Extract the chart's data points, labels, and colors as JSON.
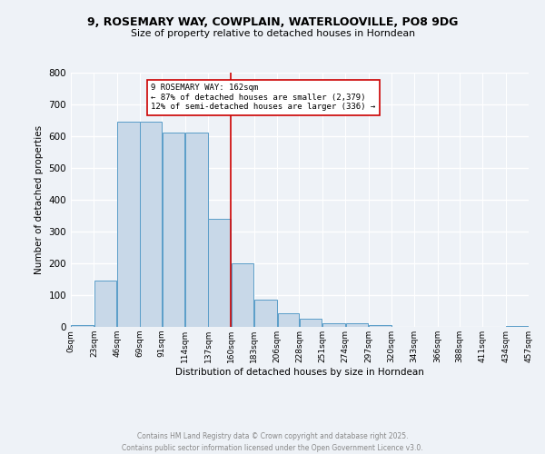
{
  "title_line1": "9, ROSEMARY WAY, COWPLAIN, WATERLOOVILLE, PO8 9DG",
  "title_line2": "Size of property relative to detached houses in Horndean",
  "xlabel": "Distribution of detached houses by size in Horndean",
  "ylabel": "Number of detached properties",
  "bar_color": "#c8d8e8",
  "bar_edge_color": "#5a9dc8",
  "background_color": "#eef2f7",
  "grid_color": "#ffffff",
  "vline_x": 160,
  "vline_color": "#cc0000",
  "annotation_text": "9 ROSEMARY WAY: 162sqm\n← 87% of detached houses are smaller (2,379)\n12% of semi-detached houses are larger (336) →",
  "annotation_box_color": "#ffffff",
  "annotation_box_edge": "#cc0000",
  "bins": [
    0,
    23,
    46,
    69,
    91,
    114,
    137,
    160,
    183,
    206,
    228,
    251,
    274,
    297,
    320,
    343,
    366,
    388,
    411,
    434,
    457
  ],
  "bin_labels": [
    "0sqm",
    "23sqm",
    "46sqm",
    "69sqm",
    "91sqm",
    "114sqm",
    "137sqm",
    "160sqm",
    "183sqm",
    "206sqm",
    "228sqm",
    "251sqm",
    "274sqm",
    "297sqm",
    "320sqm",
    "343sqm",
    "366sqm",
    "388sqm",
    "411sqm",
    "434sqm",
    "457sqm"
  ],
  "bar_heights": [
    5,
    145,
    645,
    645,
    610,
    610,
    340,
    200,
    87,
    42,
    25,
    12,
    12,
    5,
    0,
    0,
    0,
    0,
    0,
    2
  ],
  "ylim": [
    0,
    800
  ],
  "yticks": [
    0,
    100,
    200,
    300,
    400,
    500,
    600,
    700,
    800
  ],
  "footer_text": "Contains HM Land Registry data © Crown copyright and database right 2025.\nContains public sector information licensed under the Open Government Licence v3.0.",
  "footer_color": "#888888"
}
